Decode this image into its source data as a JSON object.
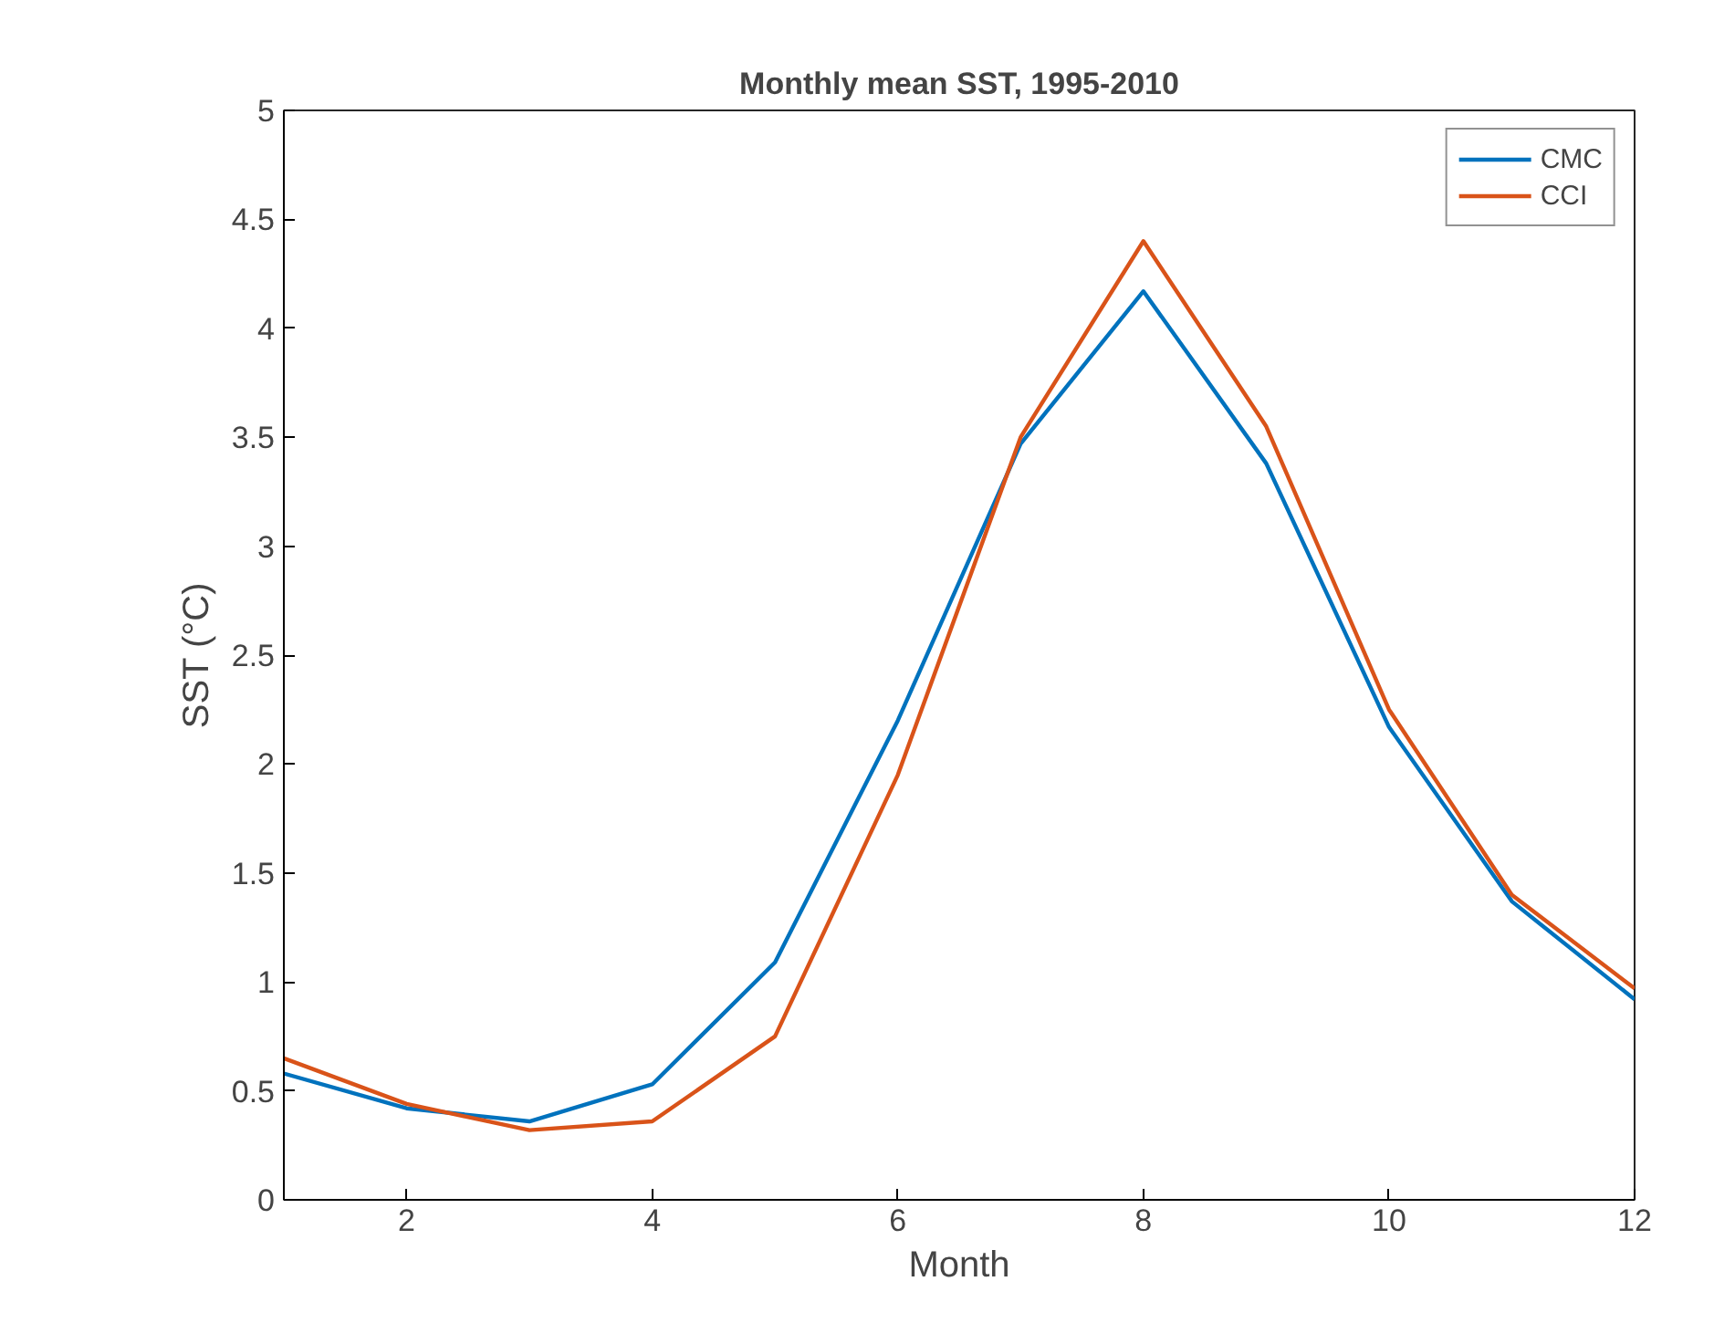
{
  "chart_data": {
    "type": "line",
    "title": "Monthly mean SST, 1995-2010",
    "xlabel": "Month",
    "ylabel": "SST (°C)",
    "x": [
      1,
      2,
      3,
      4,
      5,
      6,
      7,
      8,
      9,
      10,
      11,
      12
    ],
    "series": [
      {
        "name": "CMC",
        "color": "#0072bd",
        "values": [
          0.58,
          0.42,
          0.36,
          0.53,
          1.09,
          2.2,
          3.47,
          4.17,
          3.38,
          2.17,
          1.37,
          0.92
        ]
      },
      {
        "name": "CCI",
        "color": "#d95319",
        "values": [
          0.65,
          0.44,
          0.32,
          0.36,
          0.75,
          1.95,
          3.5,
          4.4,
          3.55,
          2.25,
          1.4,
          0.97
        ]
      }
    ],
    "xlim": [
      1,
      12
    ],
    "xticks": [
      2,
      4,
      6,
      8,
      10,
      12
    ],
    "ylim": [
      0,
      5
    ],
    "yticks": [
      0,
      0.5,
      1,
      1.5,
      2,
      2.5,
      3,
      3.5,
      4,
      4.5,
      5
    ],
    "grid": false,
    "legend": "top right",
    "marker": "none",
    "line_style": "solid"
  }
}
